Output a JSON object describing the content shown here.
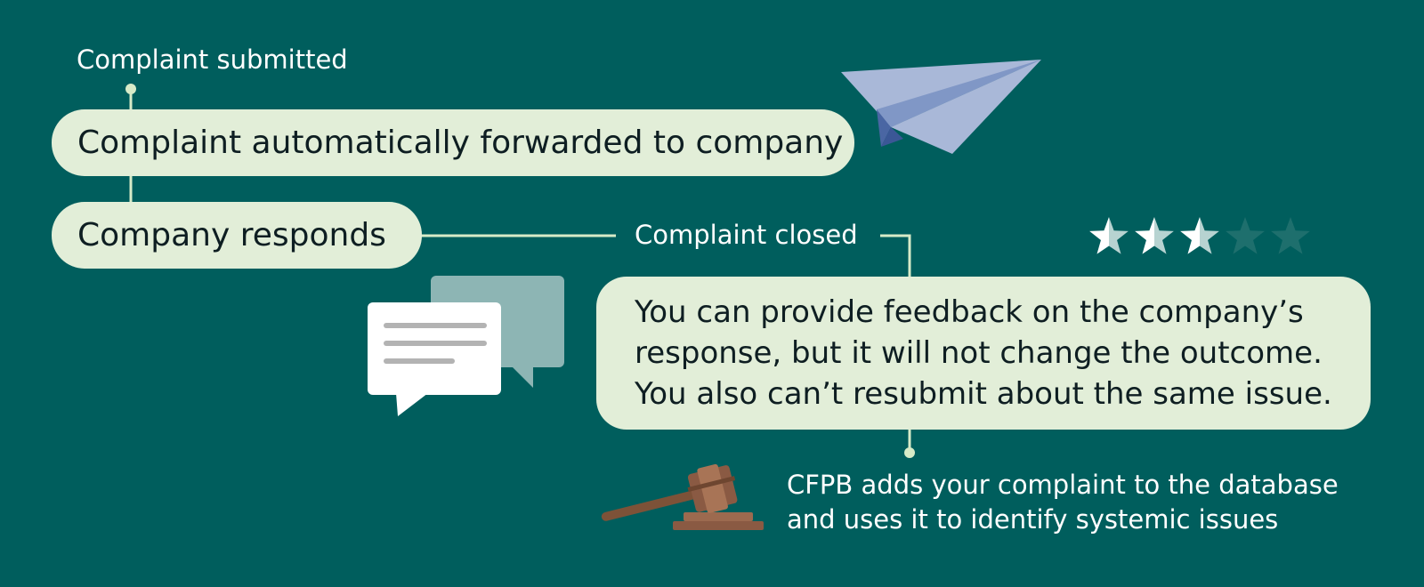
{
  "flow": {
    "submitted_label": "Complaint submitted",
    "forwarded_text": "Complaint automatically forwarded to company",
    "responds_text": "Company responds",
    "closed_label": "Complaint closed",
    "feedback_lines": [
      "You can provide feedback on the company’s",
      "response, but it will not change the outcome.",
      "You also can’t resubmit about the same issue."
    ],
    "database_lines": [
      "CFPB adds your complaint to the database",
      "and uses it to identify systemic issues"
    ]
  },
  "rating": {
    "filled": 3,
    "total": 5,
    "filled_color": "#ffffff",
    "empty_color": "#1e6f6d"
  },
  "icons": {
    "plane": "paper-plane-icon",
    "chat": "chat-bubbles-icon",
    "gavel": "gavel-icon"
  },
  "colors": {
    "background": "#005e5d",
    "pill": "#e2eed8",
    "connector": "#d7ebc8",
    "text_dark": "#0e1e22",
    "text_light": "#ffffff"
  }
}
